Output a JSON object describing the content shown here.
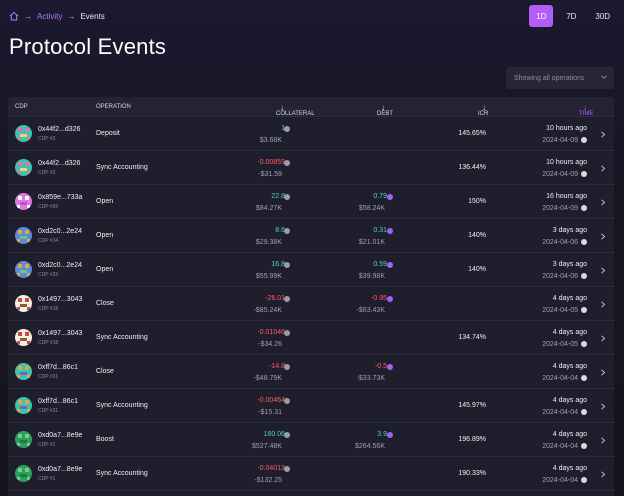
{
  "breadcrumb": {
    "home_icon": "home-icon",
    "items": [
      "Activity",
      "Events"
    ]
  },
  "range": [
    "1D",
    "7D",
    "30D"
  ],
  "range_active": "1D",
  "page_title": "Protocol Events",
  "filter": {
    "value": "Showing all operations",
    "icon": "chevron-down-icon"
  },
  "table": {
    "headers": {
      "cdp": "CDP",
      "operation": "OPERATION",
      "collateral": "COLLATERAL",
      "debt": "DEBT",
      "icr": "ICR",
      "time": "TIME",
      "sort_icon": "↓"
    },
    "rows": [
      {
        "cdp": "0x44f2...d326",
        "cdp_sub": "CDP #3",
        "operation": "Deposit",
        "coll": "1",
        "coll_usd": "$3.68K",
        "coll_sign": "pos",
        "debt": "",
        "debt_usd": "",
        "debt_sign": "",
        "icr": "145.65%",
        "time": "10 hours ago",
        "date": "2024-04-09",
        "avatar_colors": [
          "#3cc6a8",
          "#e36fc4",
          "#f4d27a"
        ]
      },
      {
        "cdp": "0x44f2...d326",
        "cdp_sub": "CDP #3",
        "operation": "Sync Accounting",
        "coll": "-0.00859",
        "coll_usd": "-$31.59",
        "coll_sign": "neg",
        "debt": "",
        "debt_usd": "",
        "debt_sign": "",
        "icr": "136.44%",
        "time": "10 hours ago",
        "date": "2024-04-09",
        "avatar_colors": [
          "#3cc6a8",
          "#e36fc4",
          "#f4d27a"
        ]
      },
      {
        "cdp": "0x859e...733a",
        "cdp_sub": "CDP #65",
        "operation": "Open",
        "coll": "22.8",
        "coll_usd": "$84.27K",
        "coll_sign": "pos",
        "debt": "0.79",
        "debt_usd": "$58.24K",
        "debt_sign": "pos",
        "icr": "150%",
        "time": "16 hours ago",
        "date": "2024-04-09",
        "avatar_colors": [
          "#e277e0",
          "#ffffff",
          "#b455c8"
        ]
      },
      {
        "cdp": "0xd2c0...2e24",
        "cdp_sub": "CDP #34",
        "operation": "Open",
        "coll": "8.6",
        "coll_usd": "$29.38K",
        "coll_sign": "pos",
        "debt": "0.31",
        "debt_usd": "$21.01K",
        "debt_sign": "pos",
        "icr": "140%",
        "time": "3 days ago",
        "date": "2024-04-06",
        "avatar_colors": [
          "#5c8ad6",
          "#e0a84e",
          "#66c98c"
        ]
      },
      {
        "cdp": "0xd2c0...2e24",
        "cdp_sub": "CDP #33",
        "operation": "Open",
        "coll": "16.8",
        "coll_usd": "$55.99K",
        "coll_sign": "pos",
        "debt": "0.59",
        "debt_usd": "$39.98K",
        "debt_sign": "pos",
        "icr": "140%",
        "time": "3 days ago",
        "date": "2024-04-06",
        "avatar_colors": [
          "#5c8ad6",
          "#e0a84e",
          "#66c98c"
        ]
      },
      {
        "cdp": "0x1497...3043",
        "cdp_sub": "CDP #18",
        "operation": "Close",
        "coll": "-26.01",
        "coll_usd": "-$85.24K",
        "coll_sign": "neg",
        "debt": "-0.95",
        "debt_usd": "-$63.43K",
        "debt_sign": "neg",
        "icr": "",
        "time": "4 days ago",
        "date": "2024-04-05",
        "avatar_colors": [
          "#f2efe6",
          "#c94b3d",
          "#8a5a3b"
        ]
      },
      {
        "cdp": "0x1497...3043",
        "cdp_sub": "CDP #18",
        "operation": "Sync Accounting",
        "coll": "-0.01046",
        "coll_usd": "-$34.26",
        "coll_sign": "neg",
        "debt": "",
        "debt_usd": "",
        "debt_sign": "",
        "icr": "134.74%",
        "time": "4 days ago",
        "date": "2024-04-05",
        "avatar_colors": [
          "#f2efe6",
          "#c94b3d",
          "#8a5a3b"
        ]
      },
      {
        "cdp": "0xff7d...86c1",
        "cdp_sub": "CDP #31",
        "operation": "Close",
        "coll": "-14.8",
        "coll_usd": "-$48.79K",
        "coll_sign": "neg",
        "debt": "-0.5",
        "debt_usd": "-$33.73K",
        "debt_sign": "neg",
        "icr": "",
        "time": "4 days ago",
        "date": "2024-04-04",
        "avatar_colors": [
          "#3cc6a8",
          "#e3a35a",
          "#7a5fd0"
        ]
      },
      {
        "cdp": "0xff7d...86c1",
        "cdp_sub": "CDP #31",
        "operation": "Sync Accounting",
        "coll": "-0.00464",
        "coll_usd": "-$15.31",
        "coll_sign": "neg",
        "debt": "",
        "debt_usd": "",
        "debt_sign": "",
        "icr": "145.97%",
        "time": "4 days ago",
        "date": "2024-04-04",
        "avatar_colors": [
          "#3cc6a8",
          "#e3a35a",
          "#7a5fd0"
        ]
      },
      {
        "cdp": "0xd0a7...8e9e",
        "cdp_sub": "CDP #1",
        "operation": "Boost",
        "coll": "160.06",
        "coll_usd": "$527.48K",
        "coll_sign": "pos",
        "debt": "3.9",
        "debt_usd": "$264.56K",
        "debt_sign": "pos",
        "icr": "196.89%",
        "time": "4 days ago",
        "date": "2024-04-04",
        "avatar_colors": [
          "#2f9e5c",
          "#6fd08d",
          "#1e7a44"
        ]
      },
      {
        "cdp": "0xd0a7...8e9e",
        "cdp_sub": "CDP #1",
        "operation": "Sync Accounting",
        "coll": "-0.04013",
        "coll_usd": "-$132.25",
        "coll_sign": "neg",
        "debt": "",
        "debt_usd": "",
        "debt_sign": "",
        "icr": "190.33%",
        "time": "4 days ago",
        "date": "2024-04-04",
        "avatar_colors": [
          "#2f9e5c",
          "#6fd08d",
          "#1e7a44"
        ]
      }
    ]
  },
  "colors": {
    "accent": "#b45cf7",
    "positive": "#53d6b8",
    "negative": "#ff5e5e"
  }
}
